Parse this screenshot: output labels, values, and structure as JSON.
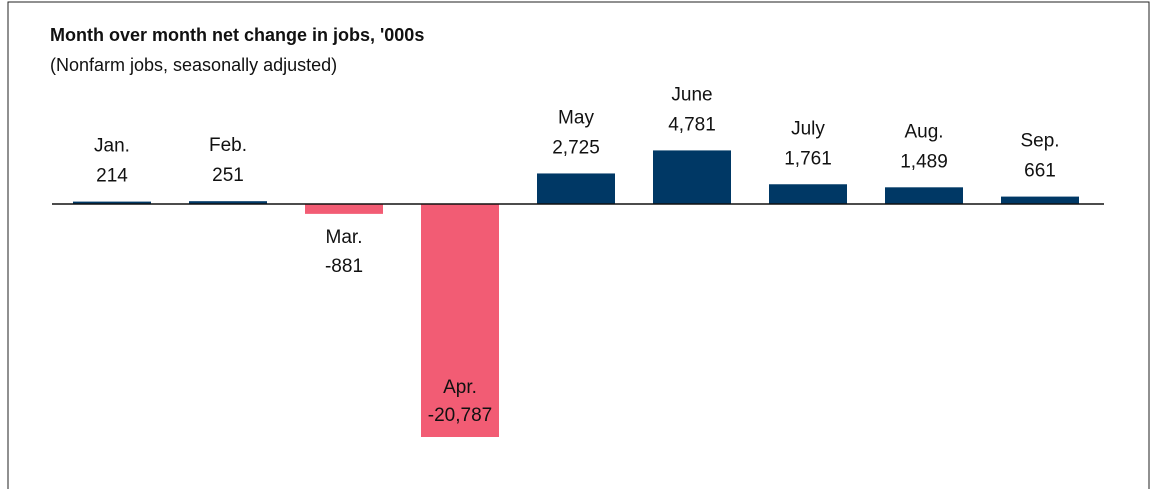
{
  "chart_data": {
    "type": "bar",
    "title": "Month over month net change in jobs, '000s",
    "subtitle": "(Nonfarm jobs, seasonally adjusted)",
    "categories": [
      "Jan.",
      "Feb.",
      "Mar.",
      "Apr.",
      "May",
      "June",
      "July",
      "Aug.",
      "Sep."
    ],
    "values": [
      214,
      251,
      -881,
      -20787,
      2725,
      4781,
      1761,
      1489,
      661
    ],
    "value_labels": [
      "214",
      "251",
      "-881",
      "-20,787",
      "2,725",
      "4,781",
      "1,761",
      "1,489",
      "661"
    ],
    "color": "#003865",
    "negative_color": "#f25c74"
  }
}
